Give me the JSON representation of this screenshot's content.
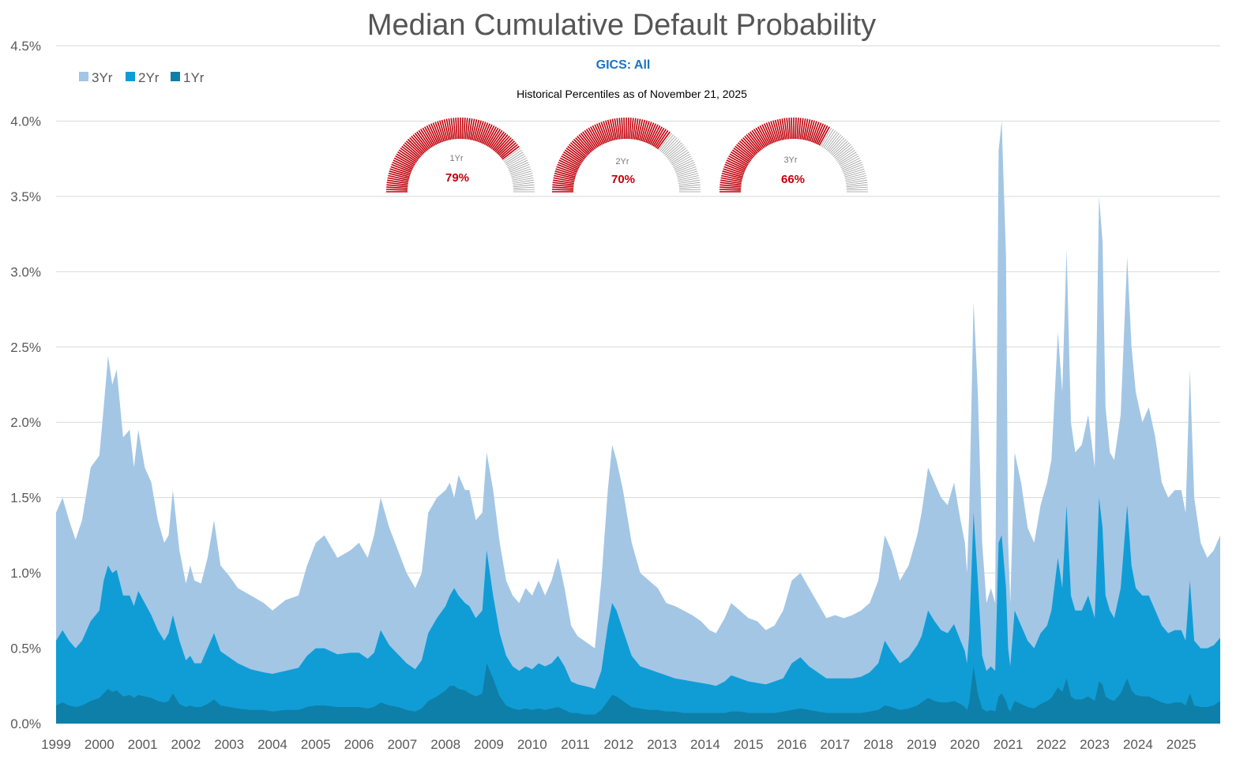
{
  "colors": {
    "y3": "#a3c6e5",
    "y2": "#109dd6",
    "y1": "#0e7fa8",
    "subtitle": "#1a73c4",
    "gauge_fill": "#c0000b",
    "gauge_rest": "#9a9a9a",
    "grid": "#d9d9d9"
  },
  "chart_data": {
    "type": "area",
    "title": "Median Cumulative Default Probability",
    "subtitle": "GICS: All",
    "note": "Historical Percentiles as of November 21, 2025",
    "xlim": [
      1999.0,
      2025.9
    ],
    "ylim": [
      0,
      0.045
    ],
    "y_ticks": [
      0,
      0.005,
      0.01,
      0.015,
      0.02,
      0.025,
      0.03,
      0.035,
      0.04,
      0.045
    ],
    "y_tick_labels": [
      "0.0%",
      "0.5%",
      "1.0%",
      "1.5%",
      "2.0%",
      "2.5%",
      "3.0%",
      "3.5%",
      "4.0%",
      "4.5%"
    ],
    "x_tick_labels": [
      "1999",
      "2000",
      "2001",
      "2002",
      "2003",
      "2004",
      "2005",
      "2006",
      "2007",
      "2008",
      "2009",
      "2010",
      "2011",
      "2012",
      "2013",
      "2014",
      "2015",
      "2016",
      "2017",
      "2018",
      "2019",
      "2020",
      "2021",
      "2022",
      "2023",
      "2024",
      "2025"
    ],
    "legend": [
      "3Yr",
      "2Yr",
      "1Yr"
    ],
    "legend_position": "top-left",
    "x": [
      1999.0,
      1999.15,
      1999.3,
      1999.45,
      1999.6,
      1999.8,
      2000.0,
      2000.1,
      2000.2,
      2000.3,
      2000.4,
      2000.55,
      2000.7,
      2000.8,
      2000.9,
      2001.05,
      2001.2,
      2001.35,
      2001.5,
      2001.6,
      2001.7,
      2001.85,
      2002.0,
      2002.1,
      2002.2,
      2002.35,
      2002.5,
      2002.65,
      2002.8,
      2003.0,
      2003.2,
      2003.5,
      2003.8,
      2004.0,
      2004.3,
      2004.6,
      2004.8,
      2005.0,
      2005.2,
      2005.5,
      2005.8,
      2006.0,
      2006.2,
      2006.35,
      2006.5,
      2006.7,
      2006.9,
      2007.1,
      2007.3,
      2007.45,
      2007.6,
      2007.8,
      2008.0,
      2008.1,
      2008.2,
      2008.3,
      2008.45,
      2008.55,
      2008.7,
      2008.85,
      2008.95,
      2009.1,
      2009.25,
      2009.4,
      2009.55,
      2009.7,
      2009.85,
      2010.0,
      2010.15,
      2010.3,
      2010.45,
      2010.6,
      2010.75,
      2010.9,
      2011.05,
      2011.2,
      2011.35,
      2011.45,
      2011.6,
      2011.75,
      2011.85,
      2011.95,
      2012.1,
      2012.3,
      2012.5,
      2012.7,
      2012.9,
      2013.1,
      2013.3,
      2013.5,
      2013.7,
      2013.9,
      2014.1,
      2014.25,
      2014.45,
      2014.6,
      2014.8,
      2015.0,
      2015.2,
      2015.4,
      2015.6,
      2015.8,
      2016.0,
      2016.2,
      2016.4,
      2016.6,
      2016.8,
      2017.0,
      2017.2,
      2017.4,
      2017.6,
      2017.8,
      2018.0,
      2018.15,
      2018.3,
      2018.5,
      2018.7,
      2018.9,
      2019.0,
      2019.15,
      2019.3,
      2019.45,
      2019.6,
      2019.75,
      2019.9,
      2020.0,
      2020.05,
      2020.1,
      2020.2,
      2020.3,
      2020.4,
      2020.5,
      2020.6,
      2020.7,
      2020.78,
      2020.85,
      2020.95,
      2021.0,
      2021.05,
      2021.15,
      2021.3,
      2021.45,
      2021.6,
      2021.75,
      2021.9,
      2022.0,
      2022.15,
      2022.25,
      2022.35,
      2022.45,
      2022.55,
      2022.7,
      2022.85,
      2023.0,
      2023.1,
      2023.18,
      2023.25,
      2023.35,
      2023.45,
      2023.6,
      2023.75,
      2023.85,
      2023.95,
      2024.1,
      2024.25,
      2024.4,
      2024.55,
      2024.7,
      2024.85,
      2025.0,
      2025.1,
      2025.2,
      2025.3,
      2025.45,
      2025.6,
      2025.75,
      2025.9
    ],
    "series": [
      {
        "name": "3Yr",
        "values": [
          1.4,
          1.5,
          1.35,
          1.22,
          1.35,
          1.7,
          1.78,
          2.1,
          2.44,
          2.25,
          2.35,
          1.9,
          1.95,
          1.7,
          1.95,
          1.7,
          1.6,
          1.35,
          1.2,
          1.25,
          1.55,
          1.15,
          0.93,
          1.05,
          0.95,
          0.93,
          1.1,
          1.35,
          1.05,
          0.98,
          0.9,
          0.85,
          0.8,
          0.75,
          0.82,
          0.85,
          1.05,
          1.2,
          1.25,
          1.1,
          1.15,
          1.2,
          1.1,
          1.25,
          1.5,
          1.3,
          1.15,
          1.0,
          0.9,
          1.0,
          1.4,
          1.5,
          1.55,
          1.6,
          1.5,
          1.65,
          1.55,
          1.55,
          1.35,
          1.4,
          1.8,
          1.55,
          1.2,
          0.95,
          0.85,
          0.8,
          0.9,
          0.85,
          0.95,
          0.85,
          0.95,
          1.1,
          0.9,
          0.65,
          0.58,
          0.55,
          0.52,
          0.5,
          0.95,
          1.55,
          1.85,
          1.75,
          1.55,
          1.2,
          1.0,
          0.95,
          0.9,
          0.8,
          0.78,
          0.75,
          0.72,
          0.68,
          0.62,
          0.6,
          0.7,
          0.8,
          0.75,
          0.7,
          0.68,
          0.62,
          0.65,
          0.75,
          0.95,
          1.0,
          0.9,
          0.8,
          0.7,
          0.72,
          0.7,
          0.72,
          0.75,
          0.8,
          0.95,
          1.25,
          1.15,
          0.95,
          1.05,
          1.25,
          1.4,
          1.7,
          1.6,
          1.5,
          1.45,
          1.6,
          1.35,
          1.2,
          1.0,
          1.4,
          2.8,
          2.2,
          1.2,
          0.8,
          0.9,
          0.8,
          3.8,
          4.0,
          3.1,
          1.2,
          0.8,
          1.8,
          1.6,
          1.3,
          1.2,
          1.45,
          1.6,
          1.75,
          2.6,
          2.2,
          3.15,
          2.0,
          1.8,
          1.85,
          2.05,
          1.7,
          3.5,
          3.2,
          2.1,
          1.8,
          1.75,
          2.05,
          3.1,
          2.5,
          2.2,
          2.0,
          2.1,
          1.9,
          1.6,
          1.5,
          1.55,
          1.55,
          1.4,
          2.35,
          1.5,
          1.2,
          1.1,
          1.15,
          1.25
        ]
      },
      {
        "name": "2Yr",
        "values": [
          0.55,
          0.62,
          0.55,
          0.5,
          0.55,
          0.68,
          0.75,
          0.95,
          1.05,
          1.0,
          1.02,
          0.85,
          0.85,
          0.78,
          0.88,
          0.8,
          0.72,
          0.62,
          0.55,
          0.6,
          0.72,
          0.55,
          0.42,
          0.45,
          0.4,
          0.4,
          0.5,
          0.6,
          0.48,
          0.44,
          0.4,
          0.36,
          0.34,
          0.33,
          0.35,
          0.37,
          0.45,
          0.5,
          0.5,
          0.46,
          0.47,
          0.47,
          0.43,
          0.47,
          0.62,
          0.52,
          0.46,
          0.4,
          0.36,
          0.42,
          0.6,
          0.7,
          0.78,
          0.85,
          0.9,
          0.85,
          0.8,
          0.78,
          0.7,
          0.75,
          1.15,
          0.85,
          0.6,
          0.45,
          0.38,
          0.35,
          0.38,
          0.36,
          0.4,
          0.38,
          0.4,
          0.45,
          0.38,
          0.28,
          0.26,
          0.25,
          0.24,
          0.23,
          0.35,
          0.65,
          0.8,
          0.75,
          0.62,
          0.45,
          0.38,
          0.36,
          0.34,
          0.32,
          0.3,
          0.29,
          0.28,
          0.27,
          0.26,
          0.25,
          0.28,
          0.32,
          0.3,
          0.28,
          0.27,
          0.26,
          0.28,
          0.3,
          0.4,
          0.44,
          0.38,
          0.34,
          0.3,
          0.3,
          0.3,
          0.3,
          0.31,
          0.34,
          0.4,
          0.55,
          0.48,
          0.4,
          0.44,
          0.52,
          0.58,
          0.75,
          0.68,
          0.62,
          0.6,
          0.66,
          0.55,
          0.48,
          0.4,
          0.6,
          1.4,
          0.95,
          0.45,
          0.35,
          0.38,
          0.35,
          1.2,
          1.25,
          0.9,
          0.5,
          0.38,
          0.75,
          0.65,
          0.55,
          0.5,
          0.6,
          0.65,
          0.75,
          1.1,
          0.9,
          1.45,
          0.85,
          0.75,
          0.75,
          0.85,
          0.7,
          1.5,
          1.3,
          0.85,
          0.75,
          0.7,
          0.9,
          1.45,
          1.05,
          0.9,
          0.85,
          0.85,
          0.75,
          0.65,
          0.6,
          0.62,
          0.62,
          0.55,
          0.95,
          0.55,
          0.5,
          0.5,
          0.52,
          0.57
        ]
      },
      {
        "name": "1Yr",
        "values": [
          0.12,
          0.14,
          0.12,
          0.11,
          0.12,
          0.15,
          0.17,
          0.2,
          0.23,
          0.21,
          0.22,
          0.18,
          0.19,
          0.17,
          0.19,
          0.18,
          0.17,
          0.15,
          0.14,
          0.15,
          0.2,
          0.13,
          0.11,
          0.12,
          0.11,
          0.11,
          0.13,
          0.16,
          0.12,
          0.11,
          0.1,
          0.09,
          0.09,
          0.08,
          0.09,
          0.09,
          0.11,
          0.12,
          0.12,
          0.11,
          0.11,
          0.11,
          0.1,
          0.11,
          0.14,
          0.12,
          0.11,
          0.09,
          0.08,
          0.1,
          0.15,
          0.18,
          0.22,
          0.25,
          0.25,
          0.23,
          0.22,
          0.2,
          0.18,
          0.2,
          0.4,
          0.3,
          0.18,
          0.12,
          0.1,
          0.09,
          0.1,
          0.09,
          0.1,
          0.09,
          0.1,
          0.11,
          0.09,
          0.07,
          0.07,
          0.06,
          0.06,
          0.06,
          0.09,
          0.15,
          0.19,
          0.18,
          0.15,
          0.11,
          0.1,
          0.09,
          0.09,
          0.08,
          0.08,
          0.07,
          0.07,
          0.07,
          0.07,
          0.07,
          0.07,
          0.08,
          0.08,
          0.07,
          0.07,
          0.07,
          0.07,
          0.08,
          0.09,
          0.1,
          0.09,
          0.08,
          0.07,
          0.07,
          0.07,
          0.07,
          0.07,
          0.08,
          0.09,
          0.12,
          0.11,
          0.09,
          0.1,
          0.12,
          0.14,
          0.17,
          0.15,
          0.14,
          0.14,
          0.15,
          0.13,
          0.11,
          0.09,
          0.14,
          0.38,
          0.2,
          0.1,
          0.08,
          0.09,
          0.08,
          0.18,
          0.2,
          0.15,
          0.1,
          0.08,
          0.15,
          0.13,
          0.11,
          0.1,
          0.13,
          0.15,
          0.17,
          0.24,
          0.21,
          0.3,
          0.18,
          0.16,
          0.16,
          0.18,
          0.15,
          0.28,
          0.26,
          0.18,
          0.16,
          0.15,
          0.2,
          0.3,
          0.22,
          0.19,
          0.18,
          0.18,
          0.16,
          0.14,
          0.13,
          0.14,
          0.14,
          0.12,
          0.2,
          0.12,
          0.11,
          0.11,
          0.12,
          0.15
        ]
      }
    ],
    "gauges": [
      {
        "label": "1Yr",
        "value": 79,
        "display": "79%"
      },
      {
        "label": "2Yr",
        "value": 70,
        "display": "70%"
      },
      {
        "label": "3Yr",
        "value": 66,
        "display": "66%"
      }
    ]
  }
}
